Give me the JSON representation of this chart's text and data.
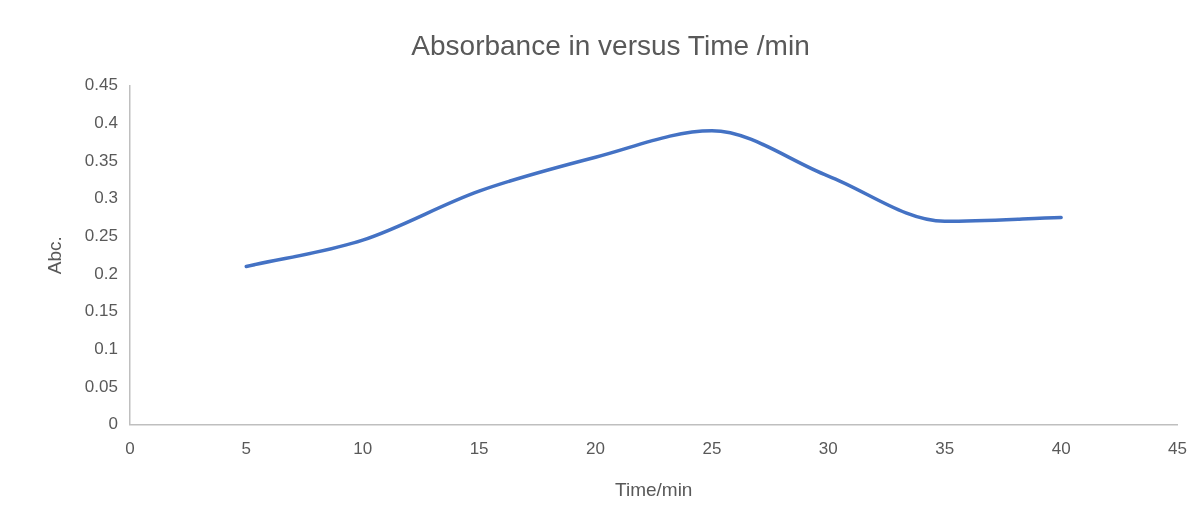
{
  "chart_data": {
    "type": "line",
    "title": "Absorbance in versus Time /min",
    "xlabel": "Time/min",
    "ylabel": "Abc.",
    "x": [
      5,
      10,
      15,
      20,
      25,
      30,
      35,
      40
    ],
    "series": [
      {
        "color": "#4472c4",
        "values": [
          0.21,
          0.245,
          0.31,
          0.355,
          0.39,
          0.33,
          0.27,
          0.275
        ]
      }
    ],
    "xlim": [
      0,
      45
    ],
    "xticks": [
      0,
      5,
      10,
      15,
      20,
      25,
      30,
      35,
      40,
      45
    ],
    "ylim": [
      0,
      0.45
    ],
    "yticks": [
      0,
      0.05,
      0.1,
      0.15,
      0.2,
      0.25,
      0.3,
      0.35,
      0.4,
      0.45
    ],
    "grid": false,
    "legend": false,
    "marker": "none"
  }
}
